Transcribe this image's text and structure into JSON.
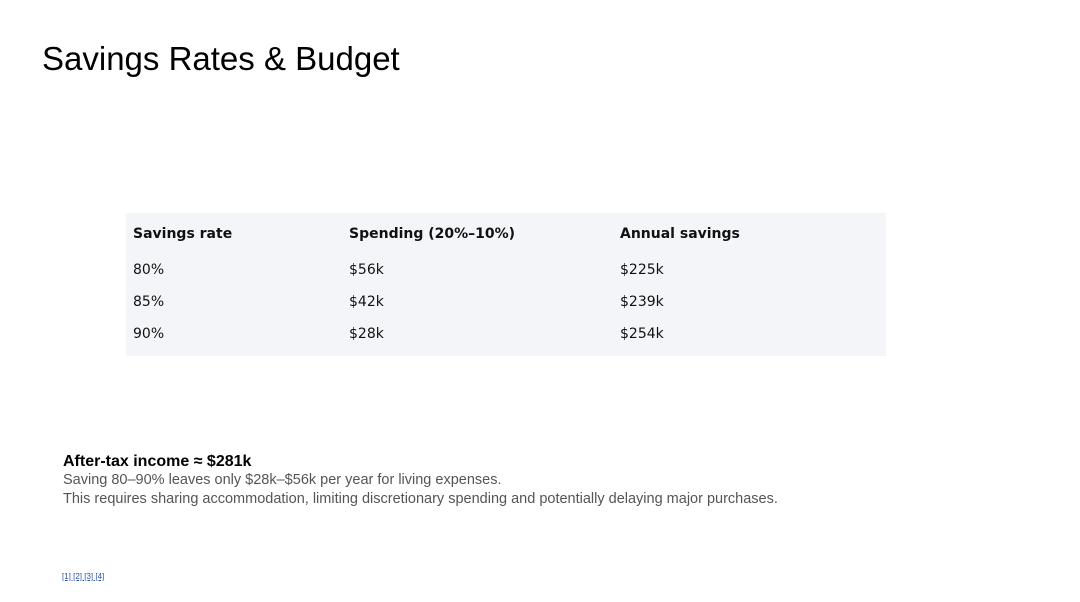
{
  "slide": {
    "title": "Savings Rates & Budget"
  },
  "table": {
    "headers": [
      "Savings rate",
      "Spending (20%–10%)",
      "Annual savings"
    ],
    "rows": [
      [
        "80%",
        "$56k",
        "$225k"
      ],
      [
        "85%",
        "$42k",
        "$239k"
      ],
      [
        "90%",
        "$28k",
        "$254k"
      ]
    ]
  },
  "summary": {
    "heading": "After-tax income ≈ $281k",
    "line1": "Saving 80–90% leaves only $28k–$56k per year for living expenses.",
    "line2": "This requires sharing accommodation, limiting discretionary spending and potentially delaying major purchases."
  },
  "references": {
    "text": "[1] [2] [3] [4]"
  },
  "colors": {
    "table_background": "#f4f5f9",
    "body_text": "#555555",
    "link": "#2a4fa8"
  }
}
